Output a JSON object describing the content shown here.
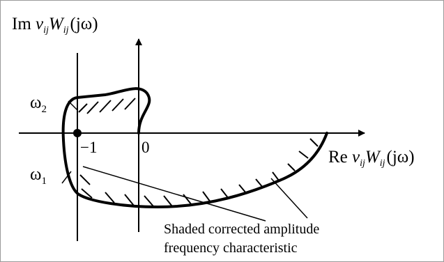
{
  "axes": {
    "y_label": {
      "main": "Im ",
      "nu": "ν",
      "nu_sub": "ij",
      "w": "W",
      "w_sub": "ij",
      "arg": "(jω)"
    },
    "x_label": {
      "main": "Re ",
      "nu": "ν",
      "nu_sub": "ij",
      "w": "W",
      "w_sub": "ij",
      "arg": "(jω)"
    },
    "origin_label": "0",
    "critical_point_label": "−1"
  },
  "frequency_labels": {
    "omega2": {
      "symbol": "ω",
      "sub": "2"
    },
    "omega1": {
      "symbol": "ω",
      "sub": "1"
    }
  },
  "annotation": {
    "line1": "Shaded corrected amplitude",
    "line2": "frequency characteristic"
  },
  "colors": {
    "ink": "#000000",
    "background": "#ffffff",
    "border": "#9a9a9a"
  }
}
